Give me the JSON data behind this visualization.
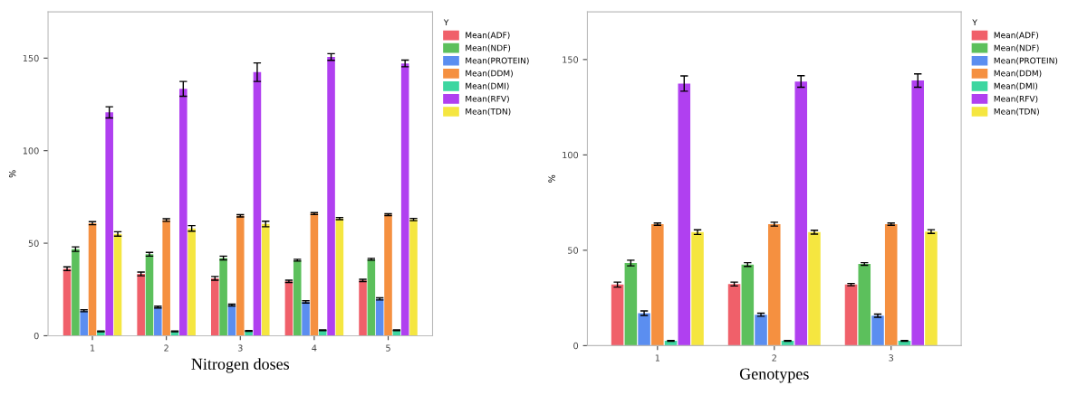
{
  "chart_data": [
    {
      "type": "bar",
      "categories": [
        "1",
        "2",
        "3",
        "4",
        "5"
      ],
      "xlabel": "Nitrogen doses",
      "ylabel": "%",
      "ylim": [
        0,
        175
      ],
      "yticks": [
        0,
        50,
        100,
        150
      ],
      "legend": "right",
      "legend_title": "Y",
      "grid": false,
      "series": [
        {
          "name": "Mean(ADF)",
          "color": "#f0606a",
          "values": [
            36.2,
            33.4,
            31,
            29.4,
            29.9
          ],
          "errors": [
            1,
            1,
            1,
            0.6,
            0.6
          ]
        },
        {
          "name": "Mean(NDF)",
          "color": "#5cc05c",
          "values": [
            46.8,
            44,
            42,
            40.8,
            41.3
          ],
          "errors": [
            1.2,
            1,
            1,
            0.5,
            0.5
          ]
        },
        {
          "name": "Mean(PROTEIN)",
          "color": "#5b8ef0",
          "values": [
            13.5,
            15.5,
            16.6,
            18.3,
            19.9
          ],
          "errors": [
            0.5,
            0.5,
            0.5,
            0.6,
            0.6
          ]
        },
        {
          "name": "Mean(DDM)",
          "color": "#f59040",
          "values": [
            60.8,
            62.5,
            64.8,
            66,
            65.4
          ],
          "errors": [
            0.8,
            0.7,
            0.6,
            0.5,
            0.5
          ]
        },
        {
          "name": "Mean(DMI)",
          "color": "#3dd6a0",
          "values": [
            2.4,
            2.4,
            2.6,
            3,
            3
          ],
          "errors": [
            0.2,
            0.2,
            0.2,
            0.2,
            0.2
          ]
        },
        {
          "name": "Mean(RFV)",
          "color": "#b040f0",
          "values": [
            120.7,
            133.4,
            142.4,
            150.6,
            147.1
          ],
          "errors": [
            3,
            4,
            5,
            1.8,
            1.8
          ]
        },
        {
          "name": "Mean(TDN)",
          "color": "#f5e640",
          "values": [
            55,
            58,
            60.4,
            63.3,
            62.8
          ],
          "errors": [
            1.2,
            1.5,
            1.5,
            0.6,
            0.6
          ]
        }
      ]
    },
    {
      "type": "bar",
      "categories": [
        "1",
        "2",
        "3"
      ],
      "xlabel": "Genotypes",
      "ylabel": "%",
      "ylim": [
        0,
        175
      ],
      "yticks": [
        0,
        50,
        100,
        150
      ],
      "legend": "right",
      "legend_title": "Y",
      "grid": false,
      "series": [
        {
          "name": "Mean(ADF)",
          "color": "#f0606a",
          "values": [
            32,
            32.3,
            32
          ],
          "errors": [
            1.3,
            1,
            0.6
          ]
        },
        {
          "name": "Mean(NDF)",
          "color": "#5cc05c",
          "values": [
            43.3,
            42.5,
            42.8
          ],
          "errors": [
            1.5,
            1,
            0.7
          ]
        },
        {
          "name": "Mean(PROTEIN)",
          "color": "#5b8ef0",
          "values": [
            17,
            16.2,
            15.7
          ],
          "errors": [
            1.2,
            0.8,
            0.8
          ]
        },
        {
          "name": "Mean(DDM)",
          "color": "#f59040",
          "values": [
            63.7,
            63.7,
            63.7
          ],
          "errors": [
            0.6,
            1,
            0.6
          ]
        },
        {
          "name": "Mean(DMI)",
          "color": "#3dd6a0",
          "values": [
            2.5,
            2.5,
            2.5
          ],
          "errors": [
            0.2,
            0.2,
            0.2
          ]
        },
        {
          "name": "Mean(RFV)",
          "color": "#b040f0",
          "values": [
            137.4,
            138.5,
            139
          ],
          "errors": [
            4,
            3,
            3.5
          ]
        },
        {
          "name": "Mean(TDN)",
          "color": "#f5e640",
          "values": [
            59.5,
            59.5,
            59.8
          ],
          "errors": [
            1.2,
            1,
            1
          ]
        }
      ]
    }
  ]
}
